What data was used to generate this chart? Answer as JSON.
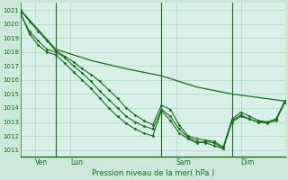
{
  "background_color": "#cce8d8",
  "plot_bg_color": "#d8f0e8",
  "grid_color": "#b0d8c0",
  "line_color": "#1a6b1a",
  "marker_color": "#1a6b1a",
  "xlabel": "Pression niveau de la mer( hPa )",
  "ylim": [
    1010.5,
    1021.5
  ],
  "yticks": [
    1011,
    1012,
    1013,
    1014,
    1015,
    1016,
    1017,
    1018,
    1019,
    1020,
    1021
  ],
  "xlim": [
    0,
    90
  ],
  "xtick_positions": [
    5,
    17,
    53,
    75
  ],
  "xtick_labels": [
    "Ven",
    "Lun",
    "Sam",
    "Dim"
  ],
  "vline_positions": [
    12,
    48,
    72
  ],
  "series0": {
    "x": [
      0,
      12,
      24,
      36,
      48,
      60,
      72,
      90
    ],
    "y": [
      1021.0,
      1018.2,
      1017.4,
      1016.8,
      1016.3,
      1015.5,
      1015.0,
      1014.5
    ]
  },
  "series1": {
    "x": [
      0,
      3,
      6,
      9,
      12,
      15,
      18,
      21,
      24,
      27,
      30,
      33,
      36,
      39,
      42,
      45,
      48,
      51,
      54,
      57,
      60,
      63,
      66,
      69,
      72,
      75,
      78,
      81,
      84,
      87,
      90
    ],
    "y": [
      1021.0,
      1020.2,
      1019.5,
      1018.8,
      1018.1,
      1017.7,
      1017.3,
      1016.8,
      1016.4,
      1015.9,
      1015.3,
      1014.7,
      1014.0,
      1013.5,
      1013.1,
      1012.8,
      1014.2,
      1013.9,
      1012.8,
      1012.0,
      1011.8,
      1011.7,
      1011.6,
      1011.2,
      1013.2,
      1013.7,
      1013.4,
      1013.1,
      1013.0,
      1013.2,
      1014.5
    ]
  },
  "series2": {
    "x": [
      0,
      3,
      6,
      9,
      12,
      15,
      18,
      21,
      24,
      27,
      30,
      33,
      36,
      39,
      42,
      45,
      48,
      51,
      54,
      57,
      60,
      63,
      66,
      69,
      72,
      75,
      78,
      81,
      84,
      87,
      90
    ],
    "y": [
      1020.7,
      1019.5,
      1018.8,
      1018.2,
      1018.0,
      1017.6,
      1017.0,
      1016.5,
      1015.9,
      1015.2,
      1014.6,
      1014.0,
      1013.4,
      1013.0,
      1012.7,
      1012.5,
      1013.9,
      1013.4,
      1012.5,
      1011.9,
      1011.6,
      1011.5,
      1011.3,
      1011.1,
      1013.0,
      1013.4,
      1013.2,
      1013.0,
      1012.9,
      1013.1,
      1014.4
    ]
  },
  "series3": {
    "x": [
      0,
      3,
      6,
      9,
      12,
      15,
      18,
      21,
      24,
      27,
      30,
      33,
      36,
      39,
      42,
      45,
      48,
      51,
      54,
      57,
      60,
      63,
      66,
      69,
      72,
      75,
      78,
      81,
      84,
      87,
      90
    ],
    "y": [
      1020.8,
      1019.3,
      1018.5,
      1018.0,
      1017.8,
      1017.2,
      1016.6,
      1016.0,
      1015.4,
      1014.7,
      1014.0,
      1013.4,
      1012.9,
      1012.5,
      1012.2,
      1012.0,
      1013.8,
      1013.1,
      1012.2,
      1011.8,
      1011.5,
      1011.6,
      1011.5,
      1011.1,
      1013.1,
      1013.5,
      1013.2,
      1013.0,
      1013.0,
      1013.2,
      1014.5
    ]
  }
}
